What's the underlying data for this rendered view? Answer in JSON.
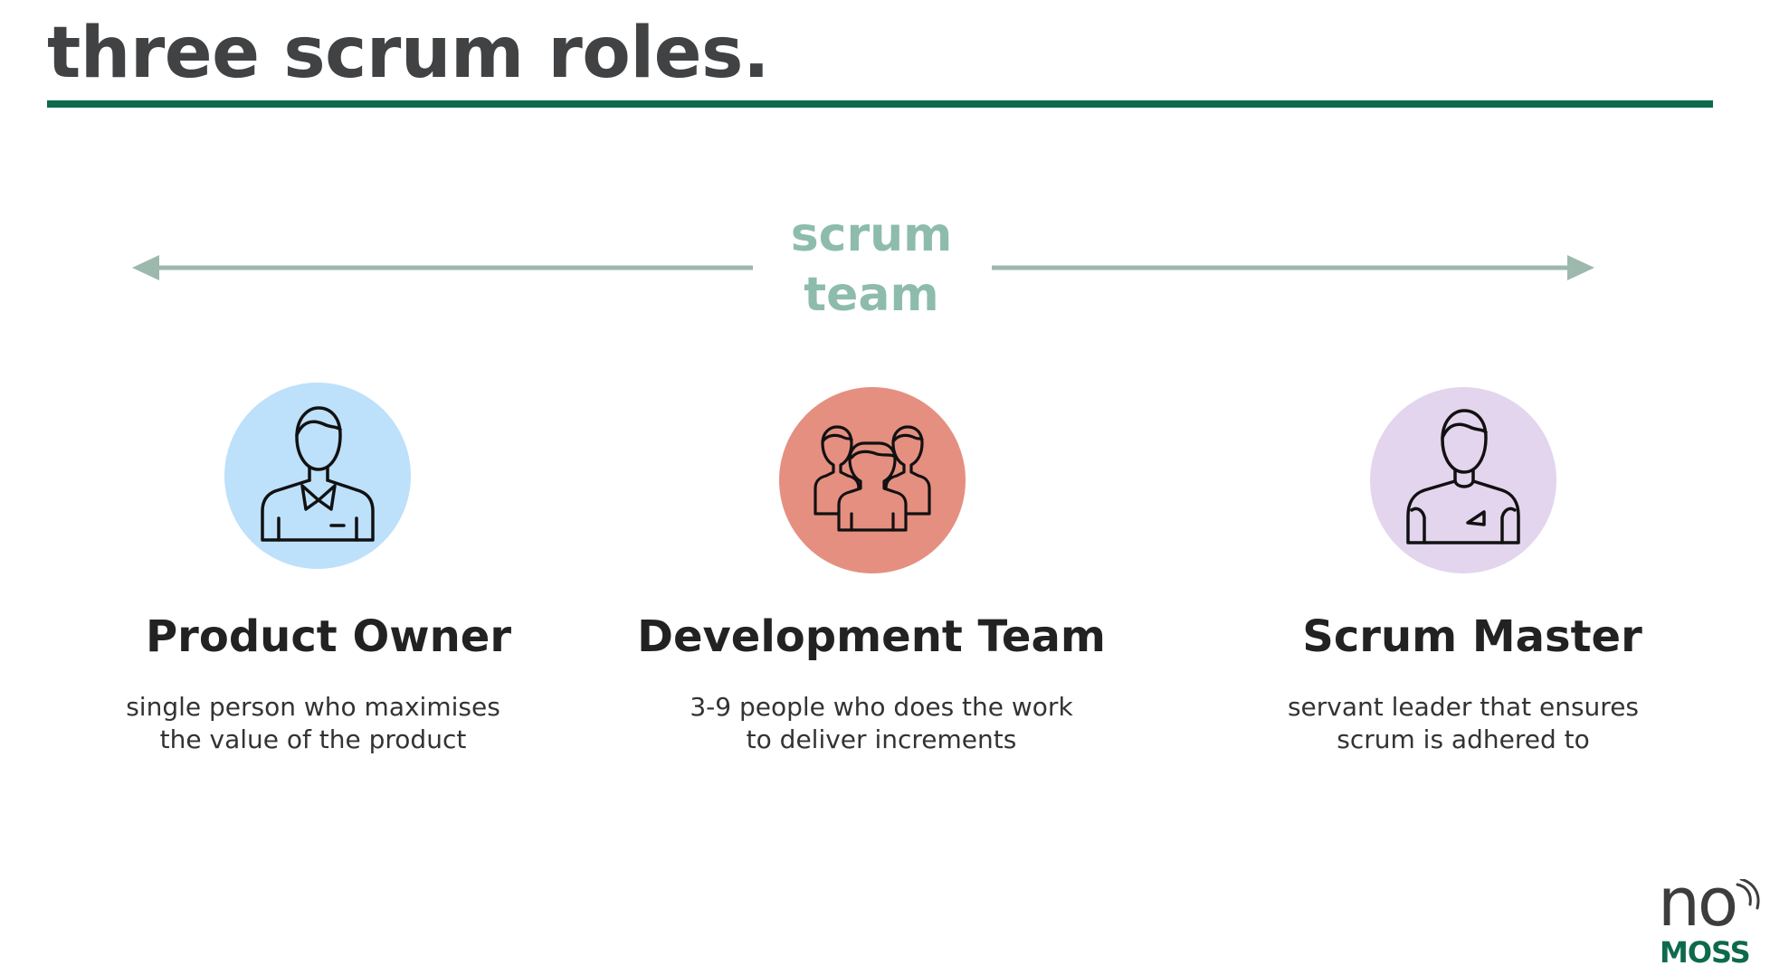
{
  "slide": {
    "title": "three scrum roles."
  },
  "team": {
    "label_line1": "scrum",
    "label_line2": "team"
  },
  "roles": [
    {
      "name": "Product Owner",
      "desc_line1": "single person who maximises",
      "desc_line2": "the value of the product",
      "icon": "product-owner-icon",
      "color": "#bde0fb"
    },
    {
      "name": "Development Team",
      "desc_line1": "3-9 people who does the work",
      "desc_line2": "to deliver increments",
      "icon": "development-team-icon",
      "color": "#e58f80"
    },
    {
      "name": "Scrum Master",
      "desc_line1": "servant leader that ensures",
      "desc_line2": "scrum is adhered to",
      "icon": "scrum-master-icon",
      "color": "#e3d5ed"
    }
  ],
  "logo": {
    "word1": "no",
    "word2": "MOSS"
  },
  "colors": {
    "title": "#414244",
    "rule": "#0e6a4c",
    "team_accent": "#8ebcac",
    "arrow": "#9db8ac"
  }
}
